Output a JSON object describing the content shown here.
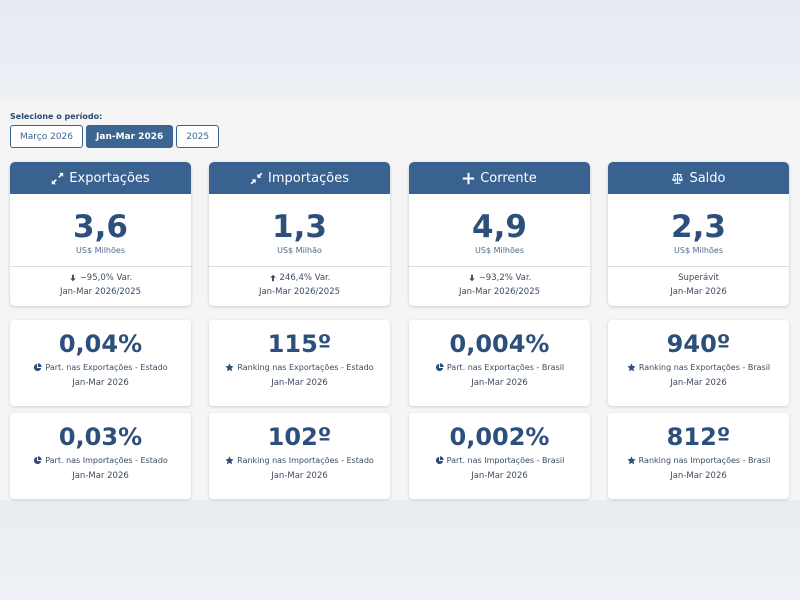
{
  "period": {
    "label": "Selecione o período:",
    "options": [
      {
        "label": "Março 2026",
        "active": false
      },
      {
        "label": "Jan-Mar 2026",
        "active": true
      },
      {
        "label": "2025",
        "active": false
      }
    ]
  },
  "summary_cards": [
    {
      "title": "Exportações",
      "icon": "arrows-expand-icon",
      "value": "3,6",
      "unit": "US$ Milhões",
      "variation": "−95,0% Var.",
      "variation_icon": "arrow-down-icon",
      "period": "Jan-Mar 2026/2025"
    },
    {
      "title": "Importações",
      "icon": "arrows-compress-icon",
      "value": "1,3",
      "unit": "US$ Milhão",
      "variation": "246,4% Var.",
      "variation_icon": "arrow-up-icon",
      "period": "Jan-Mar 2026/2025"
    },
    {
      "title": "Corrente",
      "icon": "plus-icon",
      "value": "4,9",
      "unit": "US$ Milhões",
      "variation": "−93,2% Var.",
      "variation_icon": "arrow-down-icon",
      "period": "Jan-Mar 2026/2025"
    },
    {
      "title": "Saldo",
      "icon": "scale-icon",
      "value": "2,3",
      "unit": "US$ Milhões",
      "variation": "Superávit",
      "variation_icon": "",
      "period": "Jan-Mar 2026"
    }
  ],
  "metric_rows": [
    [
      {
        "value": "0,04%",
        "icon": "pie-chart-icon",
        "label": "Part. nas Exportações - Estado",
        "period": "Jan-Mar 2026"
      },
      {
        "value": "115º",
        "icon": "star-icon",
        "label": "Ranking nas Exportações - Estado",
        "period": "Jan-Mar 2026"
      },
      {
        "value": "0,004%",
        "icon": "pie-chart-icon",
        "label": "Part. nas Exportações - Brasil",
        "period": "Jan-Mar 2026"
      },
      {
        "value": "940º",
        "icon": "star-icon",
        "label": "Ranking nas Exportações - Brasil",
        "period": "Jan-Mar 2026"
      }
    ],
    [
      {
        "value": "0,03%",
        "icon": "pie-chart-icon",
        "label": "Part. nas Importações - Estado",
        "period": "Jan-Mar 2026"
      },
      {
        "value": "102º",
        "icon": "star-icon",
        "label": "Ranking nas Importações - Estado",
        "period": "Jan-Mar 2026"
      },
      {
        "value": "0,002%",
        "icon": "pie-chart-icon",
        "label": "Part. nas Importações - Brasil",
        "period": "Jan-Mar 2026"
      },
      {
        "value": "812º",
        "icon": "star-icon",
        "label": "Ranking nas Importações - Brasil",
        "period": "Jan-Mar 2026"
      }
    ]
  ],
  "colors": {
    "header_bg": "#3a6290",
    "value_text": "#2d4f7c",
    "active_button": "#3d6592"
  }
}
